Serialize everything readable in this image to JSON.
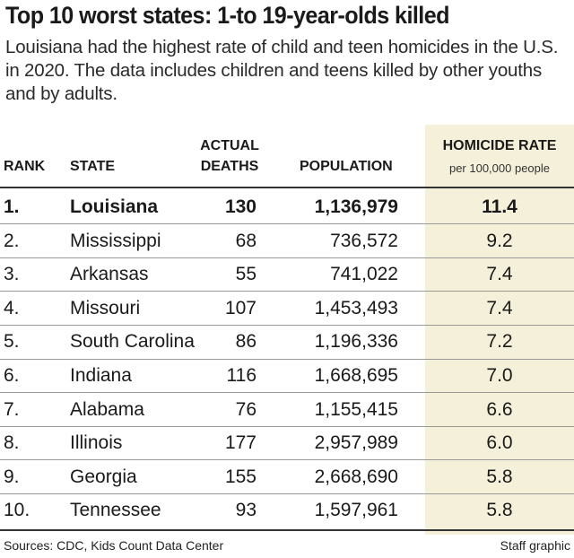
{
  "title": "Top 10 worst states: 1-to 19-year-olds killed",
  "subtitle": "Louisiana had the highest rate of child and teen homicides in the U.S. in 2020. The data includes children and teens killed by other youths and by adults.",
  "headers": {
    "rank": "RANK",
    "state": "STATE",
    "deaths_line1": "ACTUAL",
    "deaths_line2": "DEATHS",
    "population": "POPULATION",
    "rate": "HOMICIDE RATE",
    "rate_sub": "per 100,000 people"
  },
  "rows": [
    {
      "rank": "1.",
      "state": "Louisiana",
      "deaths": "130",
      "population": "1,136,979",
      "rate": "11.4"
    },
    {
      "rank": "2.",
      "state": "Mississippi",
      "deaths": "68",
      "population": "736,572",
      "rate": "9.2"
    },
    {
      "rank": "3.",
      "state": "Arkansas",
      "deaths": "55",
      "population": "741,022",
      "rate": "7.4"
    },
    {
      "rank": "4.",
      "state": "Missouri",
      "deaths": "107",
      "population": "1,453,493",
      "rate": "7.4"
    },
    {
      "rank": "5.",
      "state": "South Carolina",
      "deaths": "86",
      "population": "1,196,336",
      "rate": "7.2"
    },
    {
      "rank": "6.",
      "state": "Indiana",
      "deaths": "116",
      "population": "1,668,695",
      "rate": "7.0"
    },
    {
      "rank": "7.",
      "state": "Alabama",
      "deaths": "76",
      "population": "1,155,415",
      "rate": "6.6"
    },
    {
      "rank": "8.",
      "state": "Illinois",
      "deaths": "177",
      "population": "2,957,989",
      "rate": "6.0"
    },
    {
      "rank": "9.",
      "state": "Georgia",
      "deaths": "155",
      "population": "2,668,690",
      "rate": "5.8"
    },
    {
      "rank": "10.",
      "state": "Tennessee",
      "deaths": "93",
      "population": "1,597,961",
      "rate": "5.8"
    }
  ],
  "footer": {
    "sources": "Sources: CDC, Kids Count Data Center",
    "credit": "Staff graphic"
  },
  "colors": {
    "highlight_column": "#f5f0d9",
    "rule": "#333333",
    "row_divider": "#9a9a9a"
  },
  "chart_data": {
    "type": "table",
    "title": "Top 10 worst states: 1-to 19-year-olds killed",
    "columns": [
      "RANK",
      "STATE",
      "ACTUAL DEATHS",
      "POPULATION",
      "HOMICIDE RATE per 100,000 people"
    ],
    "categories": [
      "Louisiana",
      "Mississippi",
      "Arkansas",
      "Missouri",
      "South Carolina",
      "Indiana",
      "Alabama",
      "Illinois",
      "Georgia",
      "Tennessee"
    ],
    "series": [
      {
        "name": "Actual deaths",
        "values": [
          130,
          68,
          55,
          107,
          86,
          116,
          76,
          177,
          155,
          93
        ]
      },
      {
        "name": "Population",
        "values": [
          1136979,
          736572,
          741022,
          1453493,
          1196336,
          1668695,
          1155415,
          2957989,
          2668690,
          1597961
        ]
      },
      {
        "name": "Homicide rate per 100,000",
        "values": [
          11.4,
          9.2,
          7.4,
          7.4,
          7.2,
          7.0,
          6.6,
          6.0,
          5.8,
          5.8
        ]
      }
    ],
    "highlighted_column": "HOMICIDE RATE",
    "highlighted_row": "Louisiana"
  }
}
